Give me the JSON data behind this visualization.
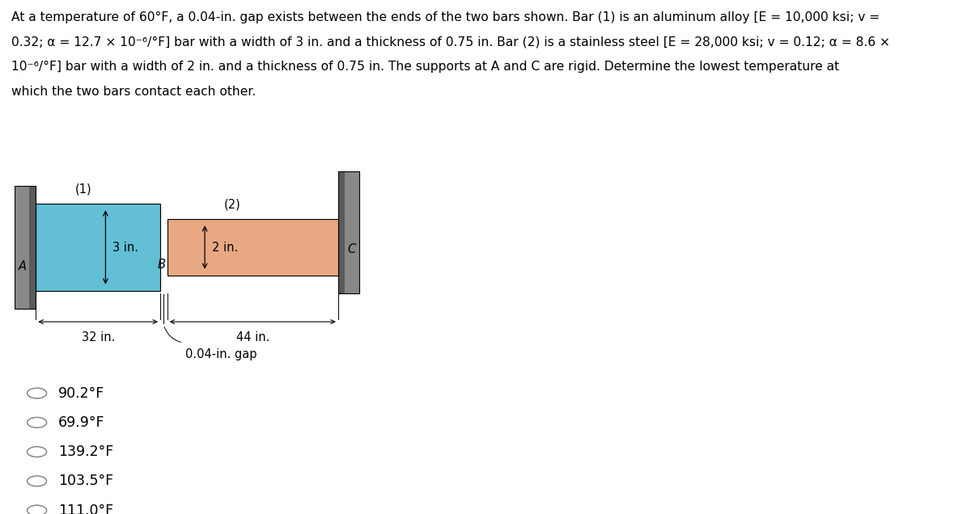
{
  "title_line1": "At a temperature of 60°F, a 0.04-in. gap exists between the ends of the two bars shown. Bar (1) is an aluminum alloy [E = 10,000 ksi; v =",
  "title_line2": "0.32; α = 12.7 × 10⁻⁶/°F] bar with a width of 3 in. and a thickness of 0.75 in. Bar (2) is a stainless steel [E = 28,000 ksi; v = 0.12; α = 8.6 ×",
  "title_line3": "10⁻⁶/°F] bar with a width of 2 in. and a thickness of 0.75 in. The supports at A and C are rigid. Determine the lowest temperature at",
  "title_line4": "which the two bars contact each other.",
  "bg_color": "#ffffff",
  "bar1_color": "#62bfd4",
  "bar2_color": "#e8a882",
  "wall_color": "#888888",
  "wall_dark": "#5a5a5a",
  "bar1_label": "(1)",
  "bar2_label": "(2)",
  "bar1_width_label": "3 in.",
  "bar1_length_label": "32 in.",
  "bar2_width_label": "2 in.",
  "bar2_length_label": "44 in.",
  "gap_label": "0.04-in. gap",
  "point_A": "A",
  "point_B": "B",
  "point_C": "C",
  "choices": [
    "90.2°F",
    "69.9°F",
    "139.2°F",
    "103.5°F",
    "111.0°F"
  ],
  "text_color": "#000000",
  "title_fontsize": 11.2,
  "choice_fontsize": 12.5,
  "label_fontsize": 10.5
}
